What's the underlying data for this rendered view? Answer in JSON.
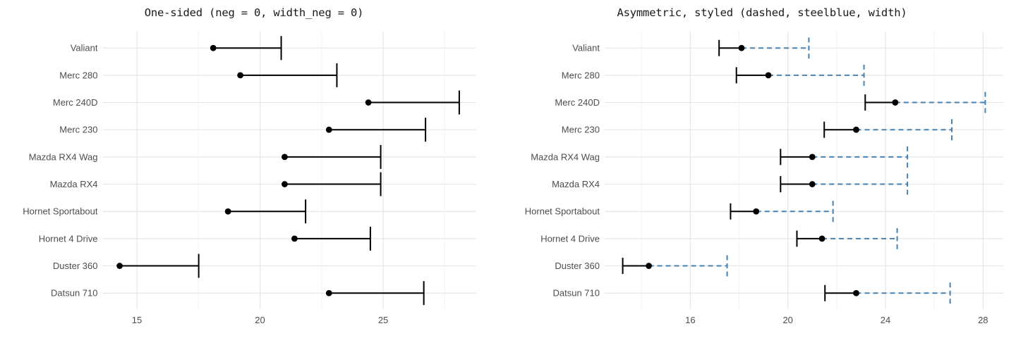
{
  "figure_title": "",
  "colors": {
    "background": "#ffffff",
    "black": "#000000",
    "steelblue": "#4682B4",
    "axis_text": "#4d4d4d",
    "grid_major": "#e5e5e5",
    "grid_minor": "#f2f2f2",
    "title_text": "#1a1a1a"
  },
  "chart_data": [
    {
      "type": "pointrange",
      "orientation": "horizontal",
      "title": "One-sided (neg = 0, width_neg = 0)",
      "categories": [
        "Valiant",
        "Merc 280",
        "Merc 240D",
        "Merc 230",
        "Mazda RX4 Wag",
        "Mazda RX4",
        "Hornet Sportabout",
        "Hornet 4 Drive",
        "Duster 360",
        "Datsun 710"
      ],
      "values": [
        18.1,
        19.2,
        24.4,
        22.8,
        21.0,
        21.0,
        18.7,
        21.4,
        14.3,
        22.8
      ],
      "lower": [
        18.1,
        19.2,
        24.4,
        22.8,
        21.0,
        21.0,
        18.7,
        21.4,
        14.3,
        22.8
      ],
      "upper": [
        20.86,
        23.12,
        28.09,
        26.72,
        24.9,
        24.9,
        21.85,
        24.48,
        17.51,
        26.65
      ],
      "x_ticks": [
        15,
        20,
        25
      ],
      "x_minor_ticks": [
        17.5,
        22.5,
        27.5
      ],
      "xlim": [
        13.61,
        28.78
      ],
      "grid": true,
      "legend": "none",
      "style": {
        "point_color": "#000000",
        "neg": {
          "show": false,
          "color": "#000000",
          "dash": "",
          "cap_dash": "",
          "cap_height": 0
        },
        "pos": {
          "show": true,
          "color": "#000000",
          "dash": "",
          "cap_dash": "",
          "cap_height": 34
        }
      }
    },
    {
      "type": "pointrange",
      "orientation": "horizontal",
      "title": "Asymmetric, styled (dashed, steelblue, width)",
      "categories": [
        "Valiant",
        "Merc 280",
        "Merc 240D",
        "Merc 230",
        "Mazda RX4 Wag",
        "Mazda RX4",
        "Hornet Sportabout",
        "Hornet 4 Drive",
        "Duster 360",
        "Datsun 710"
      ],
      "values": [
        18.1,
        19.2,
        24.4,
        22.8,
        21.0,
        21.0,
        18.7,
        21.4,
        14.3,
        22.8
      ],
      "lower": [
        17.18,
        17.89,
        23.17,
        21.49,
        19.7,
        19.7,
        17.65,
        20.37,
        13.23,
        21.52
      ],
      "upper": [
        20.86,
        23.12,
        28.09,
        26.72,
        24.9,
        24.9,
        21.85,
        24.48,
        17.51,
        26.65
      ],
      "x_ticks": [
        16,
        20,
        24,
        28
      ],
      "x_minor_ticks": [
        14,
        18,
        22,
        26
      ],
      "xlim": [
        12.49,
        28.83
      ],
      "grid": true,
      "legend": "none",
      "style": {
        "point_color": "#000000",
        "neg": {
          "show": true,
          "color": "#000000",
          "dash": "",
          "cap_dash": "",
          "cap_height": 23
        },
        "pos": {
          "show": true,
          "color": "#4682B4",
          "dash": "7 5",
          "cap_dash": "7 4.5",
          "cap_height": 30
        }
      }
    }
  ]
}
